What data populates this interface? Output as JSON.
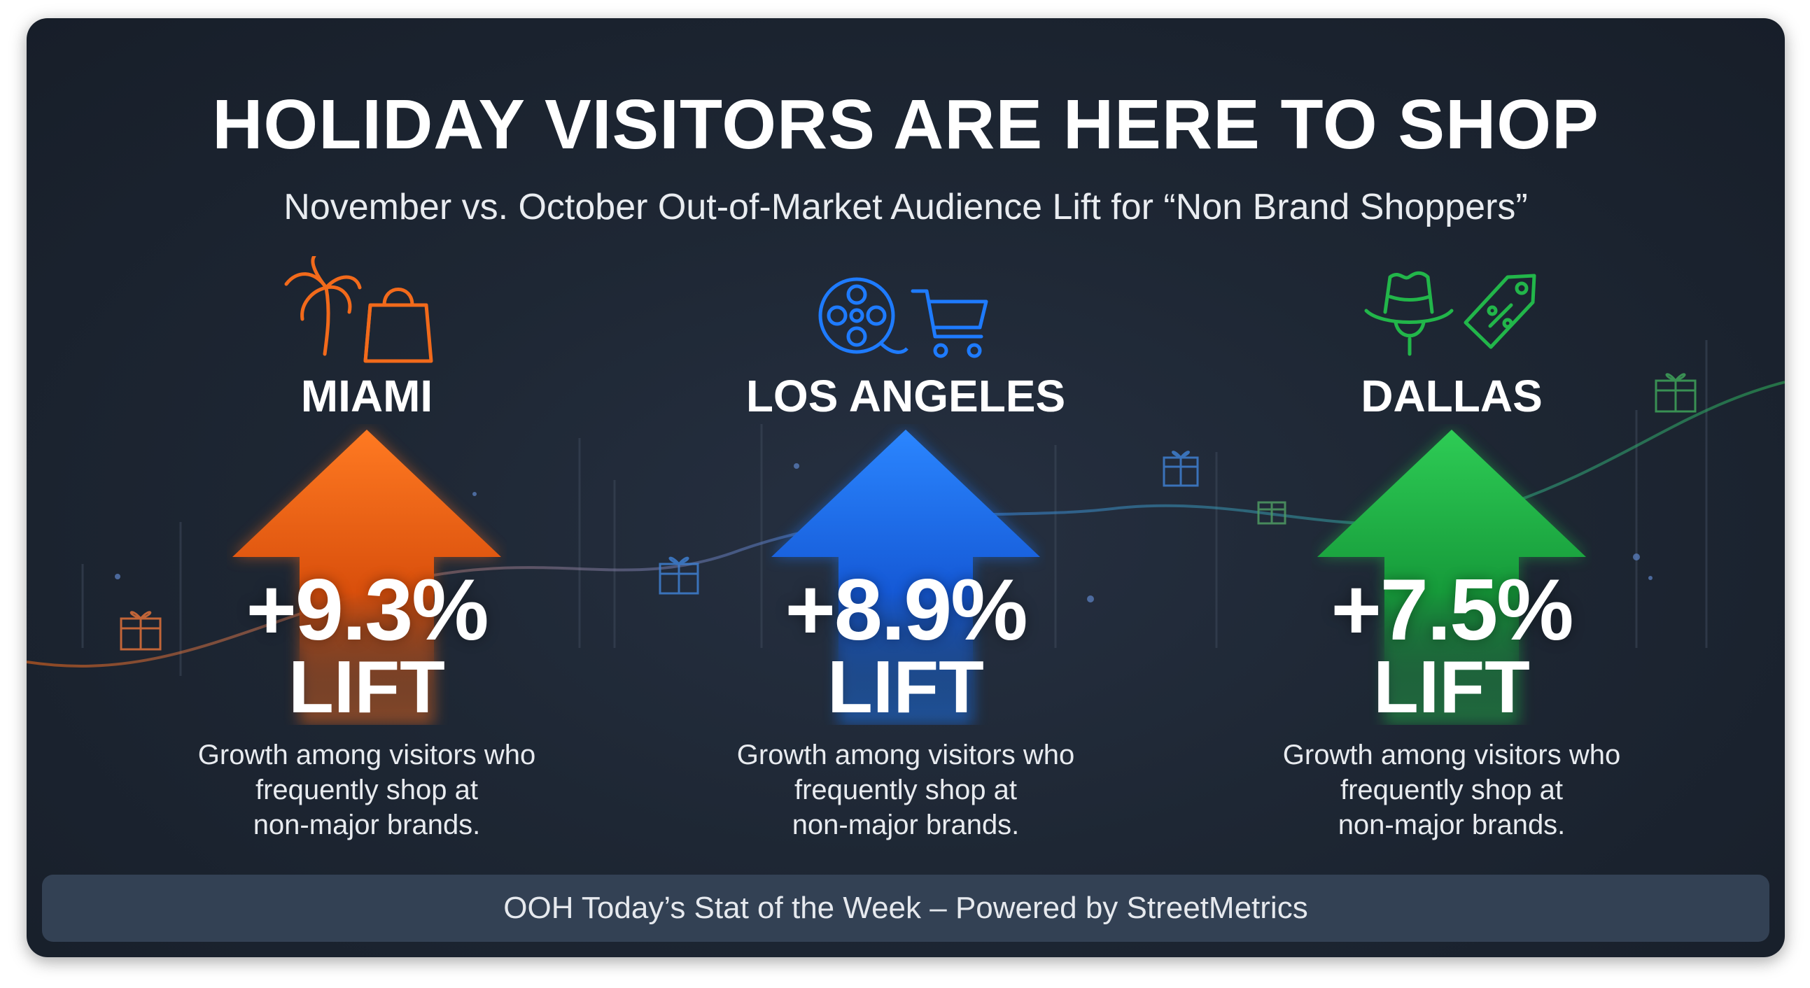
{
  "title": "HOLIDAY VISITORS ARE HERE TO SHOP",
  "subtitle": "November vs. October Out-of-Market Audience Lift for “Non Brand Shoppers”",
  "cities": [
    {
      "name": "MIAMI",
      "lift_percent": 9.3,
      "lift_value": "+9.3%",
      "lift_label": "LIFT",
      "description_lines": [
        "Growth among visitors who",
        "frequently shop at",
        "non-major brands."
      ],
      "color": "#f26a1b",
      "icons": [
        "palm-tree-icon",
        "shopping-bag-icon"
      ]
    },
    {
      "name": "LOS ANGELES",
      "lift_percent": 8.9,
      "lift_value": "+8.9%",
      "lift_label": "LIFT",
      "description_lines": [
        "Growth among visitors who",
        "frequently shop at",
        "non-major brands."
      ],
      "color": "#1e7bff",
      "icons": [
        "film-reel-icon",
        "shopping-cart-icon"
      ]
    },
    {
      "name": "DALLAS",
      "lift_percent": 7.5,
      "lift_value": "+7.5%",
      "lift_label": "LIFT",
      "description_lines": [
        "Growth among visitors who",
        "frequently shop at",
        "non-major brands."
      ],
      "color": "#22b64a",
      "icons": [
        "cowboy-hat-icon",
        "price-tag-icon"
      ]
    }
  ],
  "footer": "OOH Today’s Stat of the Week – Powered by StreetMetrics"
}
